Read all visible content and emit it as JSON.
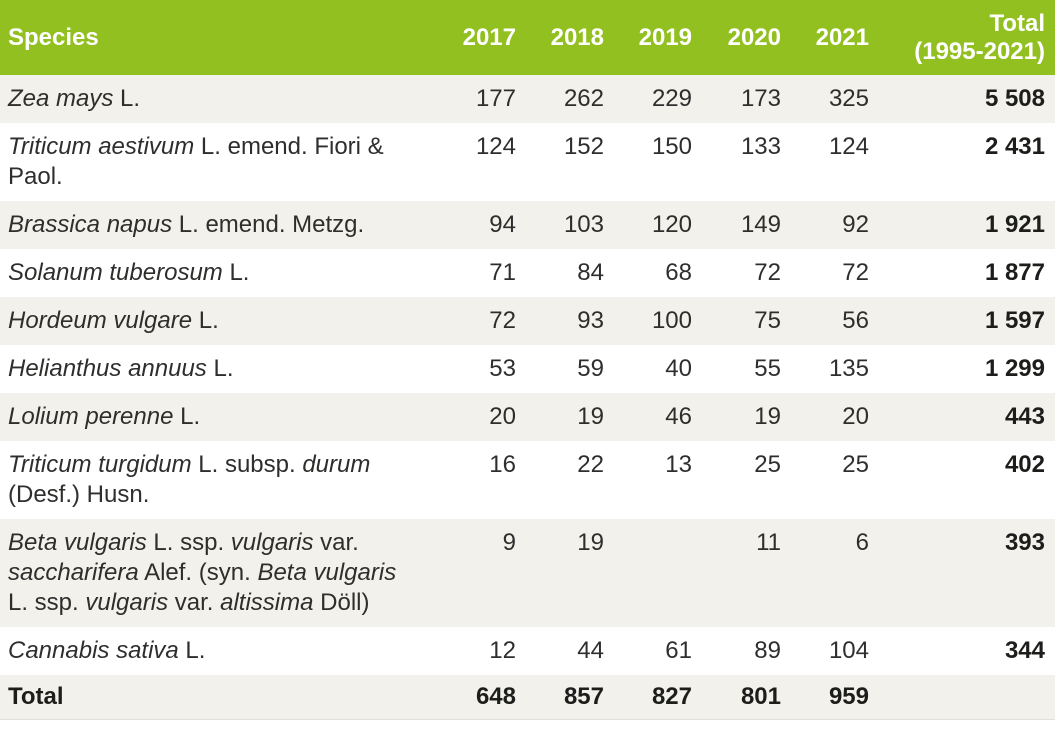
{
  "colors": {
    "header_green": "#92c020",
    "stripe_gray": "#f2f1ec",
    "body_text": "#2f2e2d",
    "bold_text": "#1d1d1b"
  },
  "table": {
    "headers": {
      "species": "Species",
      "years": [
        "2017",
        "2018",
        "2019",
        "2020",
        "2021"
      ],
      "total_line1": "Total",
      "total_line2": "(1995-2021)"
    },
    "rows": [
      {
        "name": [
          {
            "t": "Zea mays",
            "i": true
          },
          {
            "t": " L.",
            "i": false
          }
        ],
        "values": [
          "177",
          "262",
          "229",
          "173",
          "325"
        ],
        "total": "5 508"
      },
      {
        "name": [
          {
            "t": "Triticum aestivum",
            "i": true
          },
          {
            "t": " L. emend. Fiori & Paol.",
            "i": false
          }
        ],
        "values": [
          "124",
          "152",
          "150",
          "133",
          "124"
        ],
        "total": "2 431"
      },
      {
        "name": [
          {
            "t": "Brassica napus",
            "i": true
          },
          {
            "t": " L. emend. Metzg.",
            "i": false
          }
        ],
        "values": [
          "94",
          "103",
          "120",
          "149",
          "92"
        ],
        "total": "1 921"
      },
      {
        "name": [
          {
            "t": "Solanum tuberosum",
            "i": true
          },
          {
            "t": " L.",
            "i": false
          }
        ],
        "values": [
          "71",
          "84",
          "68",
          "72",
          "72"
        ],
        "total": "1 877"
      },
      {
        "name": [
          {
            "t": "Hordeum vulgare",
            "i": true
          },
          {
            "t": " L.",
            "i": false
          }
        ],
        "values": [
          "72",
          "93",
          "100",
          "75",
          "56"
        ],
        "total": "1 597"
      },
      {
        "name": [
          {
            "t": "Helianthus annuus",
            "i": true
          },
          {
            "t": " L.",
            "i": false
          }
        ],
        "values": [
          "53",
          "59",
          "40",
          "55",
          "135"
        ],
        "total": "1 299"
      },
      {
        "name": [
          {
            "t": "Lolium perenne",
            "i": true
          },
          {
            "t": " L.",
            "i": false
          }
        ],
        "values": [
          "20",
          "19",
          "46",
          "19",
          "20"
        ],
        "total": "443"
      },
      {
        "name": [
          {
            "t": "Triticum turgidum",
            "i": true
          },
          {
            "t": " L. subsp. ",
            "i": false
          },
          {
            "t": "durum",
            "i": true
          },
          {
            "t": " (Desf.) Husn.",
            "i": false
          }
        ],
        "values": [
          "16",
          "22",
          "13",
          "25",
          "25"
        ],
        "total": "402"
      },
      {
        "name": [
          {
            "t": "Beta vulgaris",
            "i": true
          },
          {
            "t": " L. ssp. ",
            "i": false
          },
          {
            "t": "vulgaris",
            "i": true
          },
          {
            "t": " var. ",
            "i": false
          },
          {
            "t": "saccharifera",
            "i": true
          },
          {
            "t": " Alef. (syn. ",
            "i": false
          },
          {
            "t": "Beta vulgaris",
            "i": true
          },
          {
            "t": " L. ssp. ",
            "i": false
          },
          {
            "t": "vulgaris",
            "i": true
          },
          {
            "t": " var. ",
            "i": false
          },
          {
            "t": "altissima",
            "i": true
          },
          {
            "t": " Döll)",
            "i": false
          }
        ],
        "values": [
          "9",
          "19",
          "",
          "11",
          "6"
        ],
        "total": "393"
      },
      {
        "name": [
          {
            "t": "Cannabis sativa",
            "i": true
          },
          {
            "t": " L.",
            "i": false
          }
        ],
        "values": [
          "12",
          "44",
          "61",
          "89",
          "104"
        ],
        "total": "344"
      }
    ],
    "footer": {
      "label": "Total",
      "values": [
        "648",
        "857",
        "827",
        "801",
        "959"
      ],
      "total": ""
    }
  }
}
